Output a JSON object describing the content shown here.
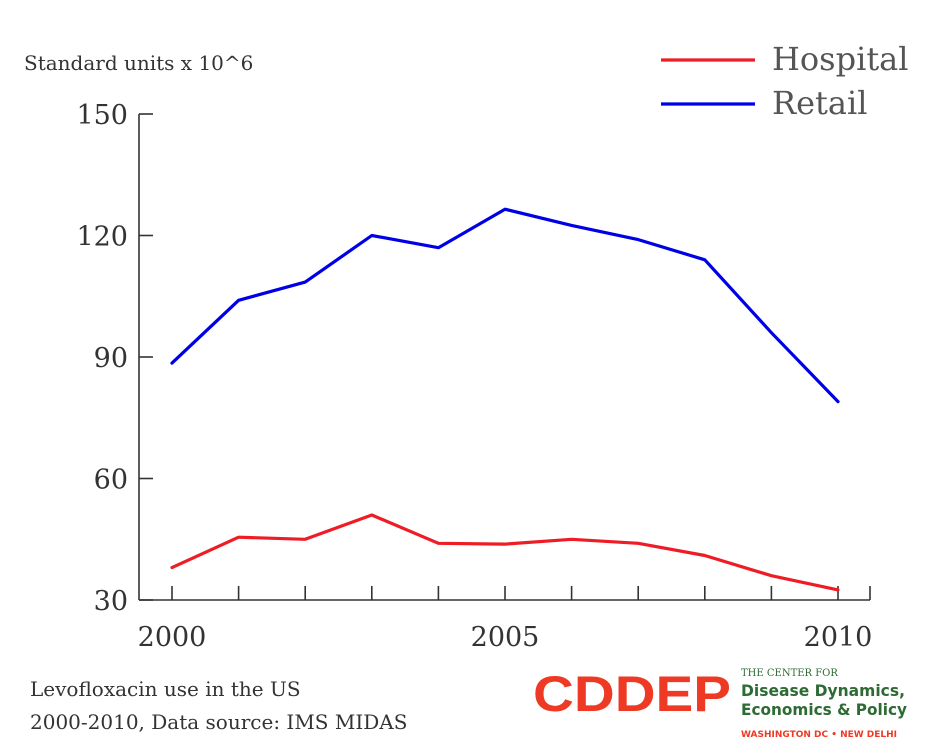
{
  "chart_data": {
    "type": "line",
    "title": "",
    "xlabel": "",
    "ylabel": "Standard units x 10^6",
    "xlim": [
      2000,
      2010
    ],
    "ylim": [
      30,
      150
    ],
    "x_ticks": [
      2000,
      2005,
      2010
    ],
    "y_ticks": [
      30,
      60,
      90,
      120,
      150
    ],
    "grid": false,
    "legend": "top-right",
    "x": [
      2000,
      2001,
      2002,
      2003,
      2004,
      2005,
      2006,
      2007,
      2008,
      2009,
      2010
    ],
    "series": [
      {
        "name": "Hospital",
        "color": "#ee1c25",
        "values": [
          38,
          45.5,
          45,
          51,
          44,
          43.8,
          45,
          44,
          41,
          36,
          32.5
        ]
      },
      {
        "name": "Retail",
        "color": "#0000e6",
        "values": [
          88.5,
          104,
          108.5,
          120,
          117,
          126.5,
          122.5,
          119,
          114,
          96,
          79
        ]
      }
    ]
  },
  "caption": {
    "line1": "Levofloxacin use in the US",
    "line2": "2000-2010, Data source: IMS MIDAS"
  },
  "logo": {
    "wordmark": "CDDEP",
    "tagline_small": "THE CENTER FOR",
    "tagline_line1": "Disease Dynamics,",
    "tagline_line2": "Economics & Policy",
    "locations": "WASHINGTON DC • NEW DELHI",
    "colors": {
      "wordmark": "#ee3a24",
      "tagline": "#2e6b34",
      "locations": "#ee3a24"
    }
  }
}
